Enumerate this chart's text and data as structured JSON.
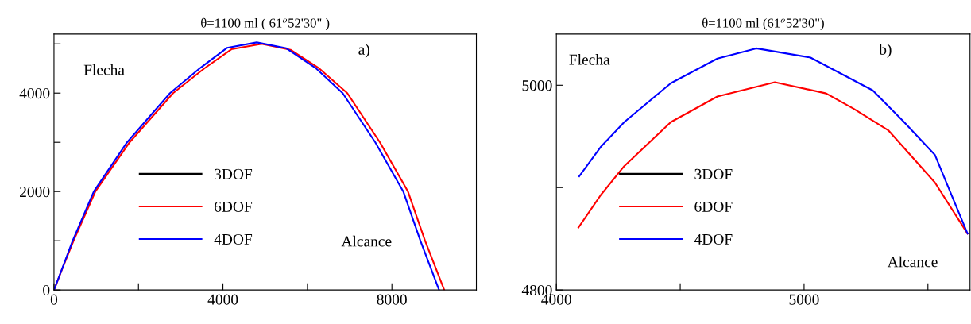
{
  "chart_data": [
    {
      "type": "line",
      "title": "θ=1100 ml ( 61$^{o}$52'30\" )",
      "annotations": [
        "Flecha",
        "a)",
        "Alcance"
      ],
      "xlim": [
        0,
        10000
      ],
      "xticks": [
        0,
        {
          "value": 2000,
          "label": null
        },
        4000,
        {
          "value": 6000,
          "label": null
        },
        8000
      ],
      "ylim": [
        0,
        5200
      ],
      "yticks": [
        0,
        {
          "value": 1000,
          "label": null
        },
        2000,
        {
          "value": 3000,
          "label": null
        },
        4000,
        {
          "value": 5000,
          "label": null
        }
      ],
      "grid": false,
      "legend": "center left",
      "marker": "none",
      "line_style": "solid",
      "series": [
        {
          "name": "3DOF",
          "color": "#000000"
        },
        {
          "name": "6DOF",
          "color": "#ff0000",
          "x": [
            0,
            200,
            464,
            980,
            1790,
            2820,
            3557,
            4200,
            4920,
            5600,
            6281,
            6944,
            7717,
            8380,
            8785,
            9240
          ],
          "values": [
            0,
            440,
            1000,
            2000,
            3000,
            4000,
            4500,
            4890,
            5000,
            4880,
            4500,
            4000,
            3000,
            2000,
            1000,
            0
          ]
        },
        {
          "name": "4DOF",
          "color": "#0000ff",
          "x": [
            0,
            200,
            442,
            943,
            1730,
            2747,
            3446,
            4100,
            4800,
            5500,
            6208,
            6834,
            7607,
            8270,
            8675,
            9117
          ],
          "values": [
            0,
            450,
            1000,
            2000,
            3000,
            4000,
            4500,
            4920,
            5030,
            4910,
            4500,
            4000,
            3000,
            2000,
            1000,
            0
          ]
        }
      ]
    },
    {
      "type": "line",
      "title": "θ=1100 ml (61$^{o}$52'30\")",
      "annotations": [
        "Flecha",
        "b)",
        "Alcance"
      ],
      "xlim": [
        4000,
        5670
      ],
      "xticks": [
        4000,
        {
          "value": 4500,
          "label": null
        },
        5000,
        {
          "value": 5500,
          "label": null
        }
      ],
      "ylim": [
        4800,
        5050
      ],
      "yticks": [
        4800,
        {
          "value": 4900,
          "label": null
        },
        5000
      ],
      "grid": false,
      "legend": "center left",
      "marker": "none",
      "line_style": "solid",
      "series": [
        {
          "name": "3DOF",
          "color": "#000000"
        },
        {
          "name": "6DOF",
          "color": "#ff0000",
          "x": [
            4089,
            4180,
            4274,
            4462,
            4650,
            4882,
            5089,
            5200,
            5340,
            5528,
            5660
          ],
          "values": [
            4861,
            4893,
            4921,
            4964,
            4989,
            5003,
            4992,
            4977,
            4956,
            4905,
            4855
          ]
        },
        {
          "name": "4DOF",
          "color": "#0000ff",
          "x": [
            4092,
            4180,
            4274,
            4462,
            4650,
            4807,
            5026,
            5277,
            5400,
            5528,
            5660
          ],
          "values": [
            4911,
            4940,
            4964,
            5002,
            5026,
            5036,
            5027,
            4995,
            4965,
            4932,
            4855
          ]
        }
      ]
    }
  ]
}
